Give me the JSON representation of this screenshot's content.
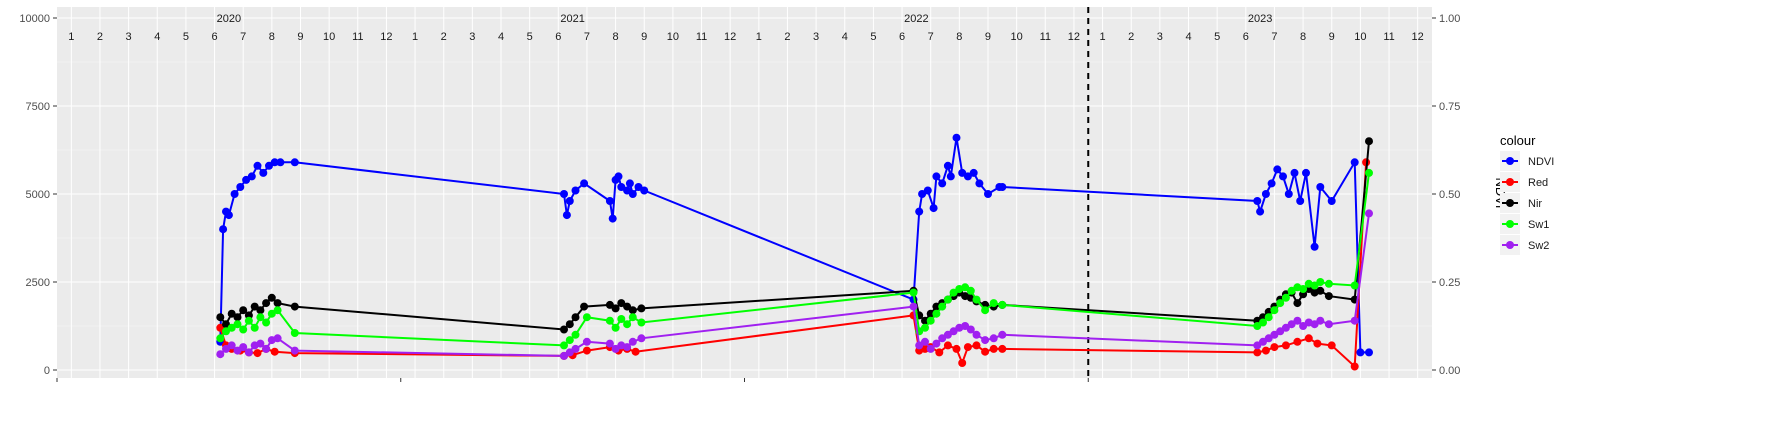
{
  "chart_data": {
    "type": "line",
    "title": "",
    "xlabel": "",
    "ylabel_left": "",
    "ylabel_right": "NDVI",
    "ylim_left": [
      0,
      10000
    ],
    "ylim_right": [
      0,
      1
    ],
    "yticks_left": [
      "0",
      "2500",
      "5000",
      "7500",
      "10000"
    ],
    "yticks_right": [
      "0.00",
      "0.25",
      "0.50",
      "0.75",
      "1.00"
    ],
    "years": [
      "2020",
      "2021",
      "2022",
      "2023"
    ],
    "month_labels": [
      "1",
      "2",
      "3",
      "4",
      "5",
      "6",
      "7",
      "8",
      "9",
      "10",
      "11",
      "12"
    ],
    "x_range_months": [
      0,
      48
    ],
    "reference_line_x": 36,
    "grid": true,
    "legend": {
      "title": "colour",
      "position": "right",
      "entries": [
        "NDVI",
        "Red",
        "Nir",
        "Sw1",
        "Sw2"
      ]
    },
    "x_unit": "months since Jan 2020",
    "series": [
      {
        "name": "NDVI",
        "color": "#0000ff",
        "axis": "right",
        "x": [
          5.7,
          5.8,
          5.9,
          6.0,
          6.2,
          6.4,
          6.6,
          6.8,
          7.0,
          7.2,
          7.4,
          7.6,
          7.8,
          8.3,
          17.7,
          17.8,
          17.9,
          18.1,
          18.4,
          19.3,
          19.4,
          19.5,
          19.6,
          19.7,
          19.9,
          20.0,
          20.1,
          20.3,
          20.5,
          29.9,
          30.1,
          30.2,
          30.4,
          30.6,
          30.7,
          30.9,
          31.1,
          31.2,
          31.4,
          31.6,
          31.8,
          32.0,
          32.2,
          32.5,
          32.9,
          33.0,
          41.9,
          42.0,
          42.2,
          42.4,
          42.6,
          42.8,
          43.0,
          43.2,
          43.4,
          43.6,
          43.9,
          44.1,
          44.5,
          45.3,
          45.5,
          45.8
        ],
        "values": [
          0.08,
          0.4,
          0.45,
          0.44,
          0.5,
          0.52,
          0.54,
          0.55,
          0.58,
          0.56,
          0.58,
          0.59,
          0.59,
          0.59,
          0.5,
          0.44,
          0.48,
          0.51,
          0.53,
          0.48,
          0.43,
          0.54,
          0.55,
          0.52,
          0.51,
          0.53,
          0.5,
          0.52,
          0.51,
          0.2,
          0.45,
          0.5,
          0.51,
          0.46,
          0.55,
          0.53,
          0.58,
          0.55,
          0.66,
          0.56,
          0.55,
          0.56,
          0.53,
          0.5,
          0.52,
          0.52,
          0.48,
          0.45,
          0.5,
          0.53,
          0.57,
          0.55,
          0.5,
          0.56,
          0.48,
          0.56,
          0.35,
          0.52,
          0.48,
          0.59,
          0.05,
          0.05
        ]
      },
      {
        "name": "Red",
        "color": "#ff0000",
        "axis": "left",
        "x": [
          5.7,
          5.9,
          6.1,
          6.4,
          6.7,
          7.0,
          7.3,
          7.6,
          8.3,
          17.7,
          18.0,
          18.5,
          19.3,
          19.6,
          19.9,
          20.2,
          29.9,
          30.1,
          30.3,
          30.5,
          30.8,
          31.1,
          31.4,
          31.6,
          31.8,
          32.1,
          32.4,
          32.7,
          33.0,
          41.9,
          42.2,
          42.5,
          42.9,
          43.3,
          43.7,
          44.0,
          44.5,
          45.3,
          45.7
        ],
        "values": [
          1200,
          700,
          600,
          550,
          500,
          480,
          600,
          520,
          480,
          400,
          420,
          550,
          650,
          550,
          600,
          520,
          1550,
          550,
          600,
          650,
          500,
          700,
          600,
          200,
          650,
          700,
          520,
          600,
          600,
          500,
          550,
          650,
          700,
          800,
          900,
          750,
          700,
          100,
          5900
        ]
      },
      {
        "name": "Nir",
        "color": "#000000",
        "axis": "left",
        "x": [
          5.7,
          5.9,
          6.1,
          6.3,
          6.5,
          6.7,
          6.9,
          7.1,
          7.3,
          7.5,
          7.7,
          8.3,
          17.7,
          17.9,
          18.1,
          18.4,
          19.3,
          19.5,
          19.7,
          19.9,
          20.1,
          20.4,
          29.9,
          30.1,
          30.3,
          30.5,
          30.7,
          30.9,
          31.1,
          31.3,
          31.5,
          31.7,
          31.9,
          32.1,
          32.4,
          32.7,
          33.0,
          41.9,
          42.1,
          42.3,
          42.5,
          42.7,
          42.9,
          43.1,
          43.3,
          43.5,
          43.7,
          43.9,
          44.1,
          44.4,
          45.3,
          45.8
        ],
        "values": [
          1500,
          1300,
          1600,
          1500,
          1700,
          1550,
          1800,
          1700,
          1900,
          2050,
          1900,
          1800,
          1150,
          1300,
          1500,
          1800,
          1850,
          1750,
          1900,
          1800,
          1700,
          1750,
          2250,
          1550,
          1400,
          1600,
          1800,
          1900,
          2000,
          2100,
          2200,
          2100,
          2050,
          1950,
          1850,
          1800,
          1850,
          1400,
          1500,
          1650,
          1800,
          2000,
          2150,
          2200,
          1900,
          2150,
          2300,
          2200,
          2250,
          2100,
          2000,
          6500
        ]
      },
      {
        "name": "Sw1",
        "color": "#00ff00",
        "axis": "left",
        "x": [
          5.7,
          5.9,
          6.1,
          6.3,
          6.5,
          6.7,
          6.9,
          7.1,
          7.3,
          7.5,
          7.7,
          8.3,
          17.7,
          17.9,
          18.1,
          18.5,
          19.3,
          19.5,
          19.7,
          19.9,
          20.1,
          20.4,
          29.9,
          30.1,
          30.3,
          30.5,
          30.7,
          30.9,
          31.1,
          31.3,
          31.5,
          31.7,
          31.9,
          32.1,
          32.4,
          32.7,
          33.0,
          41.9,
          42.1,
          42.3,
          42.5,
          42.7,
          42.9,
          43.1,
          43.3,
          43.5,
          43.7,
          43.9,
          44.1,
          44.4,
          45.3,
          45.8
        ],
        "values": [
          900,
          1100,
          1200,
          1300,
          1150,
          1400,
          1200,
          1500,
          1350,
          1600,
          1700,
          1050,
          700,
          850,
          1000,
          1500,
          1400,
          1200,
          1450,
          1300,
          1500,
          1350,
          2200,
          1100,
          1200,
          1400,
          1600,
          1800,
          2000,
          2200,
          2300,
          2350,
          2250,
          2000,
          1700,
          1900,
          1850,
          1250,
          1350,
          1500,
          1700,
          1900,
          2050,
          2250,
          2350,
          2300,
          2450,
          2400,
          2500,
          2450,
          2400,
          5600
        ]
      },
      {
        "name": "Sw2",
        "color": "#a020f0",
        "axis": "left",
        "x": [
          5.7,
          5.9,
          6.1,
          6.3,
          6.5,
          6.7,
          6.9,
          7.1,
          7.3,
          7.5,
          7.7,
          8.3,
          17.7,
          17.9,
          18.1,
          18.5,
          19.3,
          19.5,
          19.7,
          19.9,
          20.1,
          20.4,
          29.9,
          30.1,
          30.3,
          30.5,
          30.7,
          30.9,
          31.1,
          31.3,
          31.5,
          31.7,
          31.9,
          32.1,
          32.4,
          32.7,
          33.0,
          41.9,
          42.1,
          42.3,
          42.5,
          42.7,
          42.9,
          43.1,
          43.3,
          43.5,
          43.7,
          43.9,
          44.1,
          44.4,
          45.3,
          45.8
        ],
        "values": [
          450,
          600,
          700,
          550,
          650,
          500,
          700,
          750,
          600,
          850,
          900,
          550,
          400,
          500,
          600,
          800,
          750,
          600,
          700,
          650,
          800,
          900,
          1800,
          700,
          800,
          600,
          750,
          900,
          1000,
          1100,
          1200,
          1250,
          1150,
          1000,
          850,
          900,
          1000,
          700,
          800,
          900,
          1000,
          1100,
          1200,
          1300,
          1400,
          1250,
          1350,
          1300,
          1400,
          1300,
          1400,
          4450
        ]
      }
    ]
  }
}
